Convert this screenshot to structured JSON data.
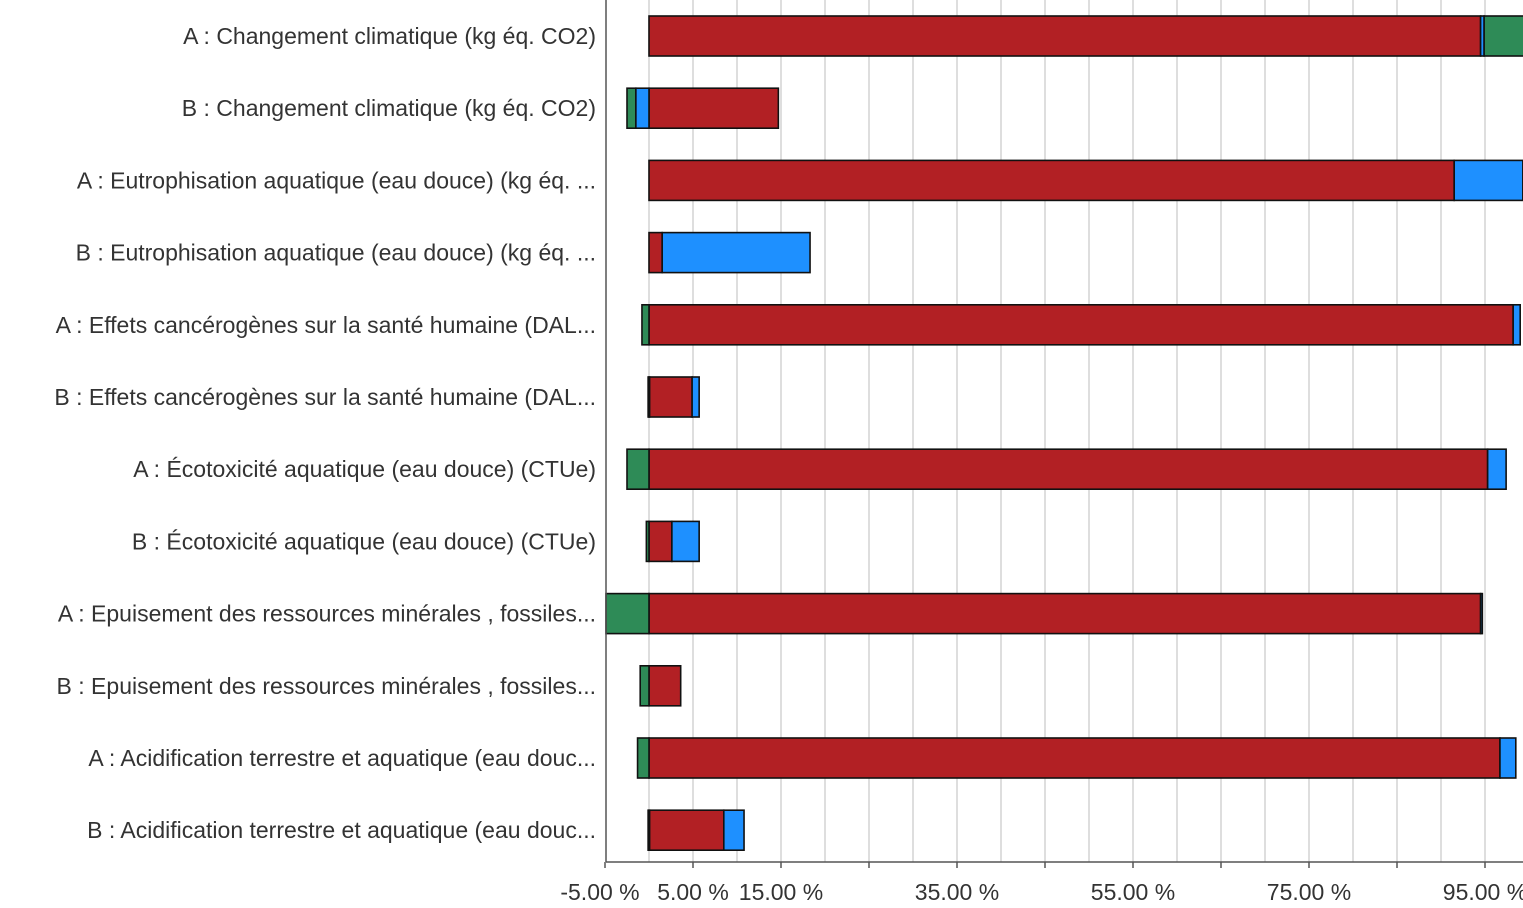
{
  "colors": {
    "red": "#b22024",
    "blue": "#1e90ff",
    "green": "#2e8b57",
    "grid": "#c8c8c8",
    "text": "#333333"
  },
  "chart_data": {
    "type": "bar",
    "orientation": "horizontal",
    "stacked": true,
    "title": "",
    "xlabel": "",
    "ylabel": "",
    "xlim": [
      -5,
      100
    ],
    "x_tick_labels": [
      "-5.00 %",
      "5.00 %",
      "15.00 %",
      "35.00 %",
      "55.00 %",
      "75.00 %",
      "95.00 %"
    ],
    "x_tick_values": [
      -5,
      5,
      15,
      35,
      55,
      75,
      95
    ],
    "grid": true,
    "categories": [
      "A : Changement climatique (kg éq. CO2)",
      "B : Changement climatique (kg éq. CO2)",
      "A : Eutrophisation aquatique (eau douce)  (kg éq. ...",
      "B : Eutrophisation aquatique (eau douce)  (kg éq. ...",
      "A : Effets cancérogènes sur la santé humaine  (DAL...",
      "B : Effets cancérogènes sur la santé humaine  (DAL...",
      "A : Écotoxicité aquatique (eau douce)  (CTUe)",
      "B : Écotoxicité aquatique (eau douce)  (CTUe)",
      "A : Epuisement des ressources minérales , fossiles...",
      "B : Epuisement des ressources minérales , fossiles...",
      "A : Acidification terrestre et aquatique (eau douc...",
      "B : Acidification terrestre et aquatique (eau douc..."
    ],
    "series": [
      {
        "color": "red",
        "values": [
          94.5,
          14.7,
          91.5,
          1.5,
          98.2,
          4.9,
          95.3,
          2.6,
          94.5,
          3.6,
          96.7,
          8.5
        ]
      },
      {
        "color": "blue",
        "values": [
          0.4,
          -1.5,
          7.8,
          16.8,
          0.8,
          0.8,
          2.1,
          3.1,
          0.2,
          0,
          1.8,
          2.3
        ]
      },
      {
        "color": "green",
        "values": [
          4.8,
          -1.0,
          0,
          0,
          -0.8,
          -0.1,
          -2.5,
          -0.3,
          -4.9,
          -1.0,
          -1.3,
          -0.1
        ]
      }
    ]
  }
}
